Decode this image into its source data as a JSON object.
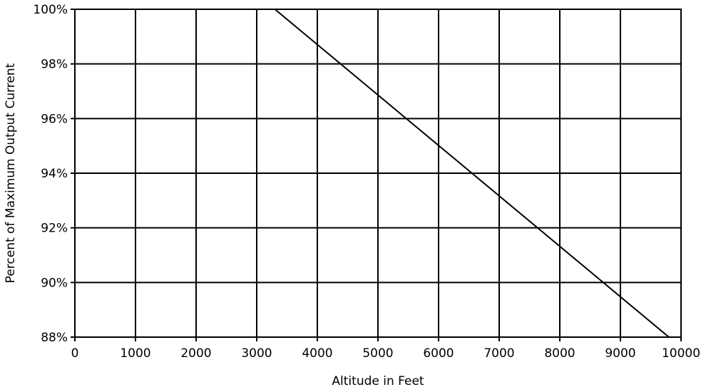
{
  "chart_data": {
    "type": "line",
    "title": "",
    "xlabel": "Altitude in Feet",
    "ylabel": "Percent of Maximum Output Current",
    "xlim": [
      0,
      10000
    ],
    "ylim": [
      88,
      100
    ],
    "x_ticks": [
      0,
      1000,
      2000,
      3000,
      4000,
      5000,
      6000,
      7000,
      8000,
      9000,
      10000
    ],
    "x_tick_labels": [
      "0",
      "1000",
      "2000",
      "3000",
      "4000",
      "5000",
      "6000",
      "7000",
      "8000",
      "9000",
      "10000"
    ],
    "y_ticks": [
      88,
      90,
      92,
      94,
      96,
      98,
      100
    ],
    "y_tick_labels": [
      "88%",
      "90%",
      "92%",
      "94%",
      "96%",
      "98%",
      "100%"
    ],
    "grid": true,
    "legend": "none",
    "series": [
      {
        "x": [
          3300,
          9800
        ],
        "y": [
          100,
          88
        ]
      }
    ],
    "colors": {
      "line": "#000000",
      "grid": "#000000",
      "background": "#ffffff"
    }
  }
}
